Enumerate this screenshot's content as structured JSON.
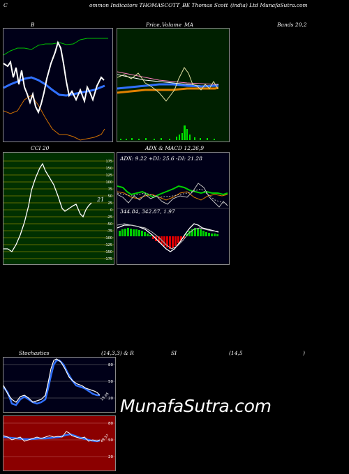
{
  "header": {
    "left": "C",
    "middle": "ommon  Indicators THOMASCOTT_BE Thomas Scott",
    "right": "(india) Ltd MunafaSutra.com"
  },
  "bollinger": {
    "label": "B",
    "bands_label": "Bands 20,2"
  },
  "price_ma": {
    "label_price": "Price,",
    "label_volume": "Volume",
    "label_ma": "MA"
  },
  "cci": {
    "title": "CCI 20",
    "value": "21",
    "ticks": [
      "175",
      "150",
      "125",
      "100",
      "75",
      "50",
      "25",
      "0",
      "-25",
      "-50",
      "-75",
      "-100",
      "-125",
      "-150",
      "-175"
    ]
  },
  "adx_macd": {
    "title": "ADX  & MACD 12,26,9",
    "adx_values": "ADX: 9.22  +DI: 25.6  -DI: 21.28",
    "macd_values": "344.84,  342.87,  1.97"
  },
  "stochastics": {
    "title_left": "Stochastics",
    "title_mid": "(14,3,3) & R",
    "title_si": "SI",
    "title_params": "(14,5",
    "title_close": ")",
    "ticks": [
      "80",
      "50",
      "20"
    ],
    "value": "19.65"
  },
  "rsi": {
    "ticks": [
      "80",
      "50",
      "20"
    ],
    "value": "49.57"
  },
  "watermark": "MunafaSutra.com",
  "colors": {
    "bollinger_bg": "#000018",
    "price_bg": "#002000",
    "cci_bg": "#003000",
    "adx_bg": "#000018",
    "stoch_bg": "#000018",
    "rsi_bg": "#8b0000"
  }
}
